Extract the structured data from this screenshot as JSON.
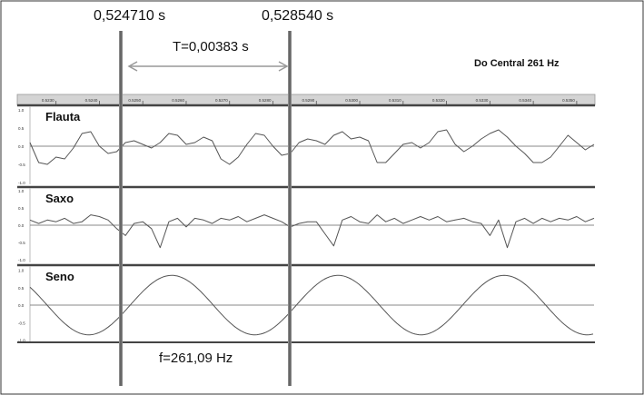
{
  "chart_data": {
    "type": "line",
    "title": "Do Central 261 Hz",
    "cursor_times": [
      "0,524710 s",
      "0,528540 s"
    ],
    "cursor_values": [
      0.52471,
      0.52854
    ],
    "period_label": "T=0,00383 s",
    "frequency_label": "f=261,09 Hz",
    "x_ticks": [
      "0.5230",
      "0.5240",
      "0.5250",
      "0.5260",
      "0.5270",
      "0.5280",
      "0.5290",
      "0.5300",
      "0.5310",
      "0.5320",
      "0.5330",
      "0.5340",
      "0.5350"
    ],
    "x_tick_values": [
      0.523,
      0.524,
      0.525,
      0.526,
      0.527,
      0.528,
      0.529,
      0.53,
      0.531,
      0.532,
      0.533,
      0.534,
      0.535
    ],
    "xlim": [
      0.5224,
      0.5354
    ],
    "y_ticks": [
      "1.0",
      "0.5",
      "0.0",
      "-0.5",
      "-1.0"
    ],
    "ylim": [
      -1,
      1
    ],
    "grid": false,
    "tracks": [
      {
        "name": "Flauta",
        "x": [
          0.5224,
          0.5226,
          0.5228,
          0.523,
          0.5232,
          0.5234,
          0.5236,
          0.5238,
          0.524,
          0.5242,
          0.5244,
          0.5246,
          0.5248,
          0.525,
          0.5252,
          0.5254,
          0.5256,
          0.5258,
          0.526,
          0.5262,
          0.5264,
          0.5266,
          0.5268,
          0.527,
          0.5272,
          0.5274,
          0.5276,
          0.5278,
          0.528,
          0.5282,
          0.5284,
          0.5286,
          0.5288,
          0.529,
          0.5292,
          0.5294,
          0.5296,
          0.5298,
          0.53,
          0.5302,
          0.5304,
          0.5306,
          0.5308,
          0.531,
          0.5312,
          0.5314,
          0.5316,
          0.5318,
          0.532,
          0.5322,
          0.5324,
          0.5326,
          0.5328,
          0.533,
          0.5332,
          0.5334,
          0.5336,
          0.5338,
          0.534,
          0.5342,
          0.5344,
          0.5346,
          0.5348,
          0.535,
          0.5352,
          0.5354
        ],
        "values": [
          0.1,
          -0.45,
          -0.5,
          -0.3,
          -0.35,
          -0.05,
          0.35,
          0.4,
          0.0,
          -0.2,
          -0.15,
          0.1,
          0.15,
          0.05,
          -0.05,
          0.1,
          0.35,
          0.3,
          0.05,
          0.1,
          0.25,
          0.15,
          -0.35,
          -0.5,
          -0.3,
          0.05,
          0.35,
          0.3,
          0.0,
          -0.25,
          -0.2,
          0.1,
          0.2,
          0.15,
          0.05,
          0.3,
          0.4,
          0.2,
          0.25,
          0.15,
          -0.45,
          -0.45,
          -0.2,
          0.05,
          0.1,
          -0.05,
          0.1,
          0.4,
          0.45,
          0.05,
          -0.15,
          0.0,
          0.2,
          0.35,
          0.45,
          0.25,
          0.0,
          -0.2,
          -0.45,
          -0.45,
          -0.3,
          0.0,
          0.3,
          0.1,
          -0.1,
          0.05
        ]
      },
      {
        "name": "Saxo",
        "x": [
          0.5224,
          0.5226,
          0.5228,
          0.523,
          0.5232,
          0.5234,
          0.5236,
          0.5238,
          0.524,
          0.5242,
          0.5244,
          0.5246,
          0.5248,
          0.525,
          0.5252,
          0.5254,
          0.5256,
          0.5258,
          0.526,
          0.5262,
          0.5264,
          0.5266,
          0.5268,
          0.527,
          0.5272,
          0.5274,
          0.5276,
          0.5278,
          0.528,
          0.5282,
          0.5284,
          0.5286,
          0.5288,
          0.529,
          0.5292,
          0.5294,
          0.5296,
          0.5298,
          0.53,
          0.5302,
          0.5304,
          0.5306,
          0.5308,
          0.531,
          0.5312,
          0.5314,
          0.5316,
          0.5318,
          0.532,
          0.5322,
          0.5324,
          0.5326,
          0.5328,
          0.533,
          0.5332,
          0.5334,
          0.5336,
          0.5338,
          0.534,
          0.5342,
          0.5344,
          0.5346,
          0.5348,
          0.535,
          0.5352,
          0.5354
        ],
        "values": [
          0.15,
          0.05,
          0.15,
          0.1,
          0.2,
          0.05,
          0.1,
          0.3,
          0.25,
          0.15,
          -0.1,
          -0.3,
          0.05,
          0.1,
          -0.1,
          -0.65,
          0.1,
          0.2,
          -0.05,
          0.2,
          0.15,
          0.05,
          0.2,
          0.15,
          0.25,
          0.1,
          0.2,
          0.3,
          0.2,
          0.1,
          -0.05,
          0.05,
          0.1,
          0.1,
          -0.25,
          -0.6,
          0.15,
          0.25,
          0.1,
          0.05,
          0.3,
          0.1,
          0.2,
          0.05,
          0.15,
          0.25,
          0.15,
          0.25,
          0.1,
          0.15,
          0.2,
          0.1,
          0.05,
          -0.3,
          0.15,
          -0.65,
          0.1,
          0.2,
          0.05,
          0.2,
          0.1,
          0.2,
          0.15,
          0.25,
          0.1,
          0.2
        ]
      },
      {
        "name": "Seno",
        "sine": {
          "frequency_hz": 261.09,
          "amplitude": 0.85,
          "phase_zero_at": 0.52471
        }
      }
    ]
  }
}
